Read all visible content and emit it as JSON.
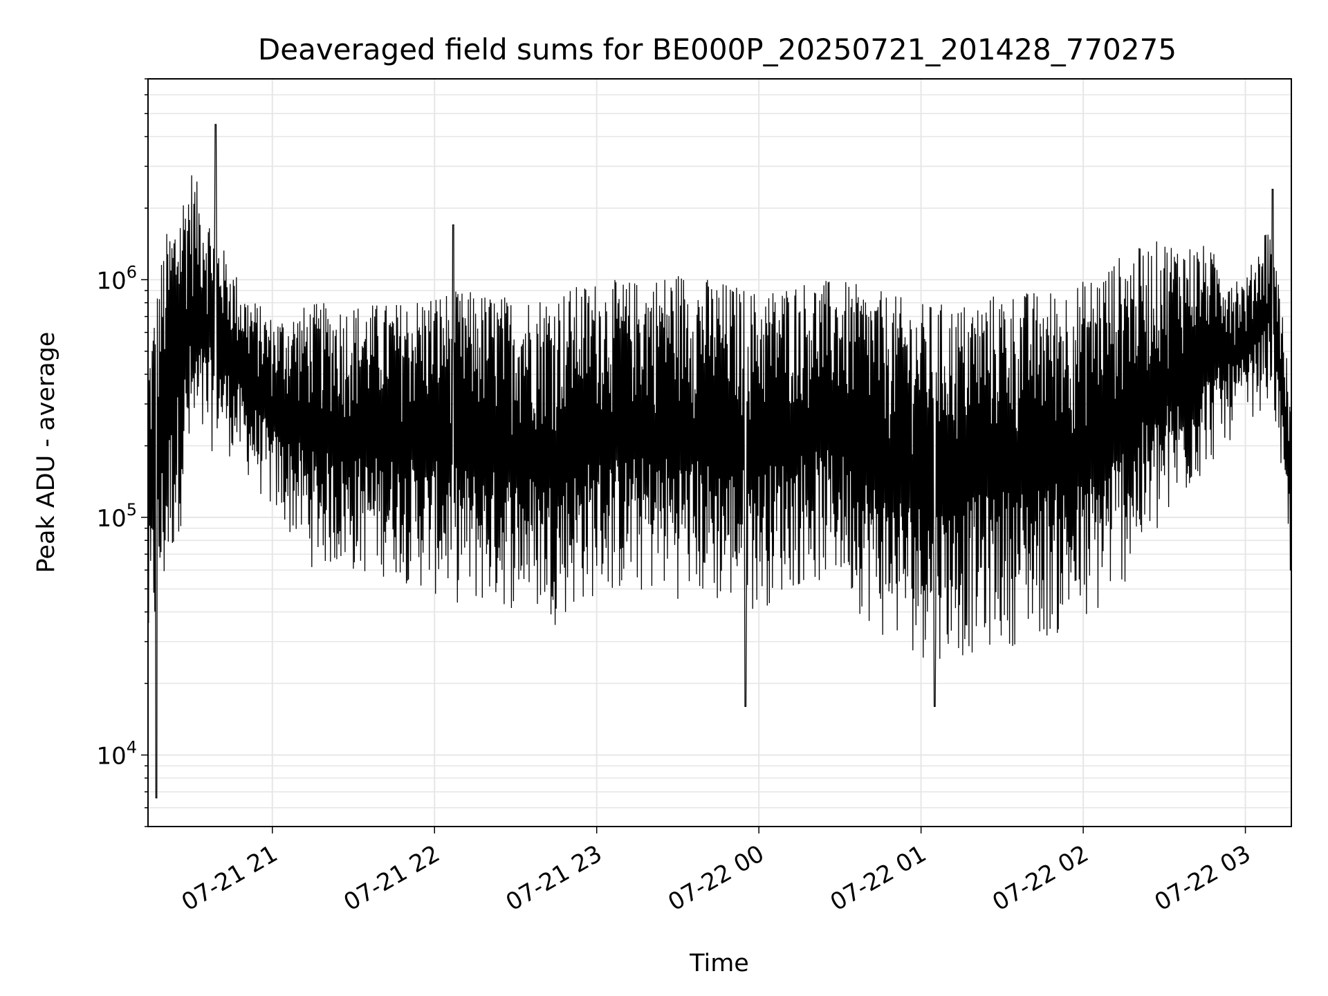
{
  "chart_data": {
    "type": "line",
    "title": "Deaveraged field sums for BE000P_20250721_201428_770275",
    "xlabel": "Time",
    "ylabel": "Peak ADU - average",
    "yscale": "log",
    "xlim": [
      "2025-07-21 20:14",
      "2025-07-22 03:17"
    ],
    "ylim": [
      5000,
      7000000
    ],
    "grid": true,
    "line_color": "#000000",
    "x_ticks": [
      {
        "time": "2025-07-21 21:00",
        "label": "07-21 21"
      },
      {
        "time": "2025-07-21 22:00",
        "label": "07-21 22"
      },
      {
        "time": "2025-07-21 23:00",
        "label": "07-21 23"
      },
      {
        "time": "2025-07-22 00:00",
        "label": "07-22 00"
      },
      {
        "time": "2025-07-22 01:00",
        "label": "07-22 01"
      },
      {
        "time": "2025-07-22 02:00",
        "label": "07-22 02"
      },
      {
        "time": "2025-07-22 03:00",
        "label": "07-22 03"
      }
    ],
    "y_ticks": [
      {
        "value": 10000,
        "base": "10",
        "exp": "4"
      },
      {
        "value": 100000,
        "base": "10",
        "exp": "5"
      },
      {
        "value": 1000000,
        "base": "10",
        "exp": "6"
      }
    ],
    "series_envelope": {
      "times": [
        "2025-07-21 20:14",
        "2025-07-21 20:20",
        "2025-07-21 20:30",
        "2025-07-21 20:40",
        "2025-07-21 20:50",
        "2025-07-21 21:00",
        "2025-07-21 21:15",
        "2025-07-21 21:30",
        "2025-07-21 21:45",
        "2025-07-21 22:00",
        "2025-07-21 22:15",
        "2025-07-21 22:30",
        "2025-07-21 22:45",
        "2025-07-21 23:00",
        "2025-07-21 23:15",
        "2025-07-21 23:30",
        "2025-07-21 23:45",
        "2025-07-22 00:00",
        "2025-07-22 00:15",
        "2025-07-22 00:30",
        "2025-07-22 00:45",
        "2025-07-22 01:00",
        "2025-07-22 01:15",
        "2025-07-22 01:30",
        "2025-07-22 01:45",
        "2025-07-22 02:00",
        "2025-07-22 02:15",
        "2025-07-22 02:30",
        "2025-07-22 02:45",
        "2025-07-22 03:00",
        "2025-07-22 03:10",
        "2025-07-22 03:17"
      ],
      "upper": [
        500000,
        1500000,
        3000000,
        1500000,
        900000,
        700000,
        800000,
        800000,
        800000,
        900000,
        900000,
        850000,
        900000,
        1000000,
        1000000,
        1100000,
        1000000,
        900000,
        1000000,
        1000000,
        900000,
        800000,
        800000,
        900000,
        900000,
        1000000,
        1300000,
        1500000,
        1400000,
        1000000,
        2000000,
        300000
      ],
      "lower": [
        20000,
        40000,
        150000,
        200000,
        150000,
        100000,
        60000,
        55000,
        55000,
        45000,
        40000,
        40000,
        35000,
        45000,
        45000,
        45000,
        40000,
        40000,
        50000,
        50000,
        30000,
        25000,
        25000,
        28000,
        30000,
        30000,
        50000,
        80000,
        150000,
        250000,
        300000,
        50000
      ]
    },
    "notable_points": [
      {
        "time": "2025-07-21 20:17",
        "value": 6600
      },
      {
        "time": "2025-07-21 20:39",
        "value": 4500000
      },
      {
        "time": "2025-07-21 22:07",
        "value": 1700000
      },
      {
        "time": "2025-07-21 23:55",
        "value": 16000
      },
      {
        "time": "2025-07-22 01:05",
        "value": 16000
      },
      {
        "time": "2025-07-22 03:10",
        "value": 2400000
      }
    ]
  }
}
